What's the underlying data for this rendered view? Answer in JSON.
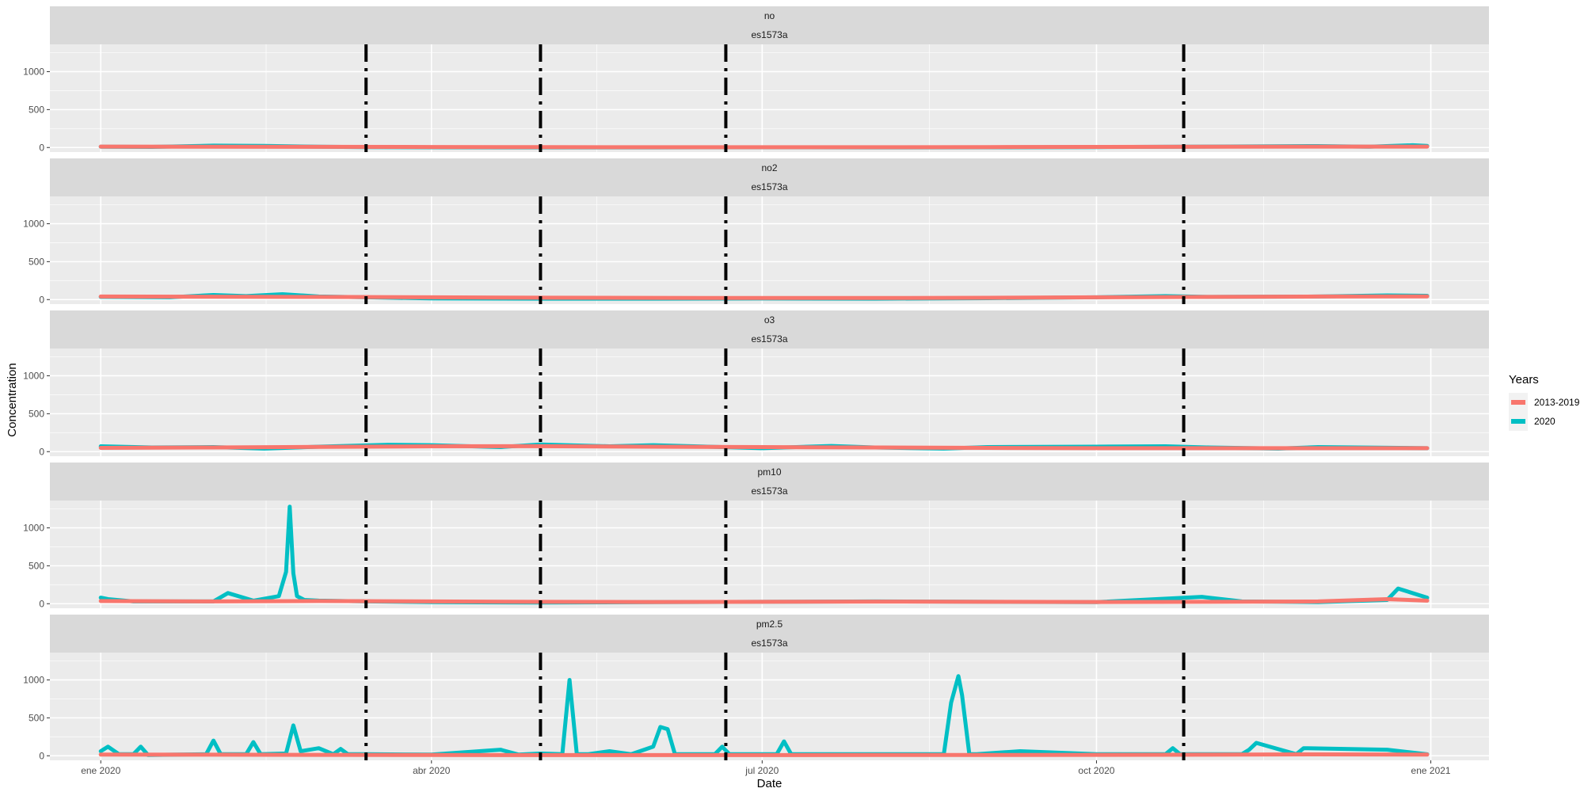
{
  "chart_data": {
    "type": "line",
    "xlabel": "Date",
    "ylabel": "Concentration",
    "x_ticks": [
      {
        "date": "2020-01-01",
        "label": "ene 2020"
      },
      {
        "date": "2020-04-01",
        "label": "abr 2020"
      },
      {
        "date": "2020-07-01",
        "label": "jul 2020"
      },
      {
        "date": "2020-10-01",
        "label": "oct 2020"
      },
      {
        "date": "2021-01-01",
        "label": "ene 2021"
      }
    ],
    "xlim": [
      "2019-12-18",
      "2021-01-17"
    ],
    "ylim": [
      -60,
      1360
    ],
    "y_ticks": [
      0,
      500,
      1000
    ],
    "grid": true,
    "legend": {
      "title": "Years",
      "position": "right",
      "entries": [
        {
          "label": "2013-2019",
          "color": "#F8766D"
        },
        {
          "label": "2020",
          "color": "#00BFC4"
        }
      ]
    },
    "vlines": [
      "2020-03-14",
      "2020-05-01",
      "2020-06-21",
      "2020-10-25"
    ],
    "vline_style": "dotdash",
    "facets": [
      {
        "pollutant": "no",
        "station": "es1573a",
        "series": [
          {
            "name": "2013-2019",
            "color": "#F8766D",
            "x": [
              "2020-01-01",
              "2020-02-01",
              "2020-03-01",
              "2020-04-01",
              "2020-05-01",
              "2020-06-01",
              "2020-07-01",
              "2020-08-01",
              "2020-09-01",
              "2020-10-01",
              "2020-11-01",
              "2020-12-01",
              "2020-12-31"
            ],
            "y": [
              12,
              11,
              9,
              7,
              5,
              4,
              4,
              4,
              6,
              8,
              10,
              12,
              12
            ]
          },
          {
            "name": "2020",
            "color": "#00BFC4",
            "x": [
              "2020-01-01",
              "2020-01-15",
              "2020-02-01",
              "2020-02-15",
              "2020-03-01",
              "2020-03-14",
              "2020-04-01",
              "2020-05-01",
              "2020-06-01",
              "2020-07-01",
              "2020-08-01",
              "2020-09-01",
              "2020-10-01",
              "2020-11-01",
              "2020-12-01",
              "2020-12-15",
              "2020-12-27",
              "2020-12-31"
            ],
            "y": [
              10,
              8,
              25,
              20,
              10,
              5,
              3,
              2,
              2,
              3,
              2,
              3,
              6,
              12,
              18,
              10,
              30,
              20
            ]
          }
        ]
      },
      {
        "pollutant": "no2",
        "station": "es1573a",
        "series": [
          {
            "name": "2013-2019",
            "color": "#F8766D",
            "x": [
              "2020-01-01",
              "2020-02-01",
              "2020-03-01",
              "2020-04-01",
              "2020-05-01",
              "2020-06-01",
              "2020-07-01",
              "2020-08-01",
              "2020-09-01",
              "2020-10-01",
              "2020-11-01",
              "2020-12-01",
              "2020-12-31"
            ],
            "y": [
              40,
              38,
              35,
              30,
              25,
              22,
              20,
              20,
              24,
              30,
              35,
              40,
              42
            ]
          },
          {
            "name": "2020",
            "color": "#00BFC4",
            "x": [
              "2020-01-01",
              "2020-01-20",
              "2020-02-01",
              "2020-02-10",
              "2020-02-20",
              "2020-03-01",
              "2020-03-14",
              "2020-04-01",
              "2020-05-01",
              "2020-06-01",
              "2020-07-01",
              "2020-08-01",
              "2020-09-01",
              "2020-10-01",
              "2020-10-20",
              "2020-11-01",
              "2020-12-01",
              "2020-12-20",
              "2020-12-31"
            ],
            "y": [
              35,
              30,
              60,
              45,
              70,
              40,
              30,
              15,
              12,
              12,
              14,
              12,
              18,
              30,
              45,
              35,
              40,
              55,
              50
            ]
          }
        ]
      },
      {
        "pollutant": "o3",
        "station": "es1573a",
        "series": [
          {
            "name": "2013-2019",
            "color": "#F8766D",
            "x": [
              "2020-01-01",
              "2020-02-01",
              "2020-03-01",
              "2020-04-01",
              "2020-05-01",
              "2020-06-01",
              "2020-07-01",
              "2020-08-01",
              "2020-09-01",
              "2020-10-01",
              "2020-11-01",
              "2020-12-01",
              "2020-12-31"
            ],
            "y": [
              50,
              55,
              62,
              70,
              72,
              65,
              60,
              55,
              50,
              45,
              45,
              45,
              45
            ]
          },
          {
            "name": "2020",
            "color": "#00BFC4",
            "x": [
              "2020-01-01",
              "2020-01-15",
              "2020-02-01",
              "2020-02-15",
              "2020-03-01",
              "2020-03-20",
              "2020-04-01",
              "2020-04-20",
              "2020-05-01",
              "2020-05-20",
              "2020-06-01",
              "2020-06-20",
              "2020-07-01",
              "2020-07-20",
              "2020-08-01",
              "2020-08-20",
              "2020-09-01",
              "2020-10-01",
              "2020-10-20",
              "2020-11-01",
              "2020-11-20",
              "2020-12-01",
              "2020-12-31"
            ],
            "y": [
              70,
              55,
              60,
              40,
              65,
              90,
              85,
              60,
              95,
              70,
              85,
              60,
              45,
              75,
              55,
              40,
              60,
              65,
              70,
              55,
              40,
              60,
              45
            ]
          }
        ]
      },
      {
        "pollutant": "pm10",
        "station": "es1573a",
        "series": [
          {
            "name": "2013-2019",
            "color": "#F8766D",
            "x": [
              "2020-01-01",
              "2020-02-01",
              "2020-03-01",
              "2020-04-01",
              "2020-05-01",
              "2020-06-01",
              "2020-07-01",
              "2020-08-01",
              "2020-09-01",
              "2020-10-01",
              "2020-11-01",
              "2020-12-01",
              "2020-12-20",
              "2020-12-31"
            ],
            "y": [
              35,
              30,
              35,
              30,
              25,
              22,
              25,
              28,
              25,
              22,
              25,
              30,
              60,
              40
            ]
          },
          {
            "name": "2020",
            "color": "#00BFC4",
            "x": [
              "2020-01-01",
              "2020-01-03",
              "2020-01-10",
              "2020-02-01",
              "2020-02-05",
              "2020-02-12",
              "2020-02-19",
              "2020-02-21",
              "2020-02-22",
              "2020-02-23",
              "2020-02-24",
              "2020-02-26",
              "2020-03-01",
              "2020-03-14",
              "2020-04-01",
              "2020-05-01",
              "2020-06-01",
              "2020-07-01",
              "2020-08-01",
              "2020-09-01",
              "2020-10-01",
              "2020-10-30",
              "2020-11-10",
              "2020-12-01",
              "2020-12-20",
              "2020-12-23",
              "2020-12-31"
            ],
            "y": [
              80,
              60,
              30,
              30,
              140,
              40,
              100,
              420,
              1280,
              400,
              100,
              50,
              40,
              30,
              20,
              15,
              20,
              25,
              30,
              25,
              20,
              90,
              30,
              20,
              50,
              200,
              80
            ]
          }
        ]
      },
      {
        "pollutant": "pm2.5",
        "station": "es1573a",
        "series": [
          {
            "name": "2013-2019",
            "color": "#F8766D",
            "x": [
              "2020-01-01",
              "2020-02-01",
              "2020-03-01",
              "2020-04-01",
              "2020-05-01",
              "2020-06-01",
              "2020-07-01",
              "2020-08-01",
              "2020-09-01",
              "2020-10-01",
              "2020-11-01",
              "2020-12-01",
              "2020-12-31"
            ],
            "y": [
              15,
              14,
              12,
              10,
              9,
              9,
              9,
              10,
              10,
              12,
              14,
              18,
              15
            ]
          },
          {
            "name": "2020",
            "color": "#00BFC4",
            "x": [
              "2020-01-01",
              "2020-01-03",
              "2020-01-06",
              "2020-01-10",
              "2020-01-12",
              "2020-01-14",
              "2020-01-30",
              "2020-02-01",
              "2020-02-03",
              "2020-02-10",
              "2020-02-12",
              "2020-02-14",
              "2020-02-21",
              "2020-02-23",
              "2020-02-25",
              "2020-03-01",
              "2020-03-05",
              "2020-03-07",
              "2020-03-09",
              "2020-03-14",
              "2020-04-01",
              "2020-04-20",
              "2020-04-25",
              "2020-05-01",
              "2020-05-07",
              "2020-05-09",
              "2020-05-11",
              "2020-05-14",
              "2020-05-20",
              "2020-05-26",
              "2020-06-01",
              "2020-06-03",
              "2020-06-05",
              "2020-06-07",
              "2020-06-18",
              "2020-06-20",
              "2020-06-22",
              "2020-07-05",
              "2020-07-07",
              "2020-07-09",
              "2020-08-01",
              "2020-08-20",
              "2020-08-22",
              "2020-08-24",
              "2020-08-25",
              "2020-08-27",
              "2020-08-29",
              "2020-09-10",
              "2020-10-01",
              "2020-10-20",
              "2020-10-22",
              "2020-10-24",
              "2020-11-10",
              "2020-11-12",
              "2020-11-14",
              "2020-11-25",
              "2020-11-27",
              "2020-12-20",
              "2020-12-31"
            ],
            "y": [
              60,
              120,
              20,
              20,
              120,
              10,
              20,
              200,
              20,
              20,
              180,
              20,
              30,
              400,
              60,
              100,
              20,
              90,
              20,
              20,
              15,
              80,
              15,
              30,
              20,
              1000,
              20,
              20,
              60,
              20,
              120,
              380,
              350,
              20,
              20,
              120,
              20,
              20,
              190,
              20,
              20,
              20,
              700,
              1050,
              800,
              20,
              20,
              60,
              20,
              20,
              100,
              20,
              20,
              80,
              170,
              20,
              100,
              80,
              20
            ]
          }
        ]
      }
    ]
  }
}
